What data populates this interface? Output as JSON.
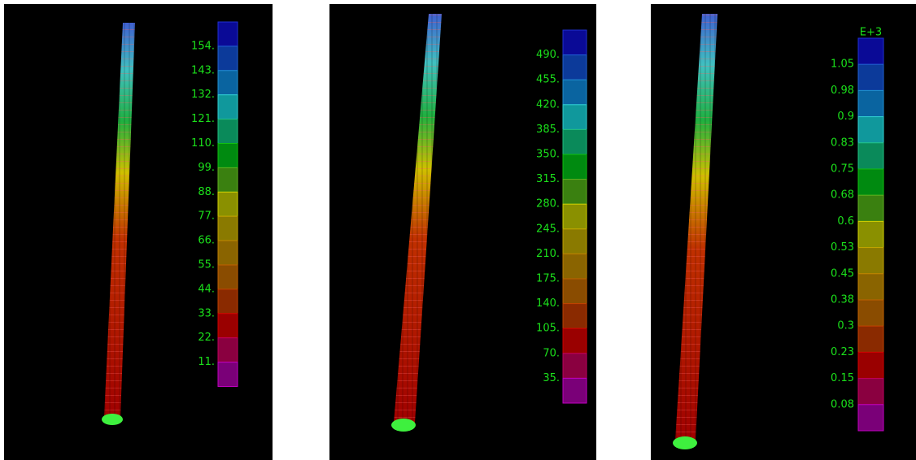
{
  "panels": [
    {
      "legend_labels": [
        "154.",
        "143.",
        "132.",
        "121.",
        "110.",
        "99.",
        "88.",
        "77.",
        "66.",
        "55.",
        "44.",
        "33.",
        "22.",
        "11."
      ]
    },
    {
      "legend_labels": [
        "490.",
        "455.",
        "420.",
        "385.",
        "350.",
        "315.",
        "280.",
        "245.",
        "210.",
        "175.",
        "140.",
        "105.",
        "70.",
        "35."
      ]
    },
    {
      "legend_header": "E+3",
      "legend_labels": [
        "1.05",
        "0.98",
        "0.9",
        "0.83",
        "0.75",
        "0.68",
        "0.6",
        "0.53",
        "0.45",
        "0.38",
        "0.3",
        "0.23",
        "0.15",
        "0.08"
      ]
    }
  ]
}
